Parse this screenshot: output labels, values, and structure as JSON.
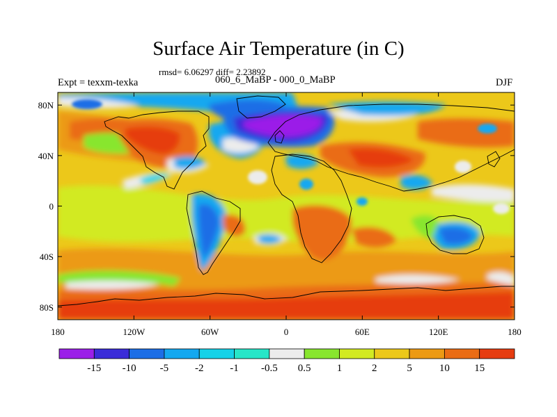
{
  "title": "Surface Air Temperature (in C)",
  "stats_line": "rmsd= 6.06297 diff= 2.23892",
  "difference_label": "060_6_MaBP - 000_0_MaBP",
  "experiment_label": "Expt = texxm-texka",
  "season": "DJF",
  "map": {
    "projection": "cylindrical-equidistant",
    "lon_range": [
      -180,
      180
    ],
    "lat_range": [
      -90,
      90
    ],
    "lon_ticks": [
      {
        "value": -180,
        "label": "180"
      },
      {
        "value": -120,
        "label": "120W"
      },
      {
        "value": -60,
        "label": "60W"
      },
      {
        "value": 0,
        "label": "0"
      },
      {
        "value": 60,
        "label": "60E"
      },
      {
        "value": 120,
        "label": "120E"
      },
      {
        "value": 180,
        "label": "180"
      }
    ],
    "lat_ticks": [
      {
        "value": 80,
        "label": "80N"
      },
      {
        "value": 40,
        "label": "40N"
      },
      {
        "value": 0,
        "label": "0"
      },
      {
        "value": -40,
        "label": "40S"
      },
      {
        "value": -80,
        "label": "80S"
      }
    ]
  },
  "colorbar": {
    "levels": [
      "-15",
      "-10",
      "-5",
      "-2",
      "-1",
      "-0.5",
      "0.5",
      "1",
      "2",
      "5",
      "10",
      "15"
    ],
    "colors": [
      "#9b1fe8",
      "#3a2cd8",
      "#1c6ee6",
      "#14a8f0",
      "#16d2e8",
      "#27e6c8",
      "#ececec",
      "#88e62e",
      "#d2ea22",
      "#ecc81a",
      "#ec9a14",
      "#ea6c14",
      "#e63c10"
    ]
  },
  "chart_data": {
    "type": "heatmap",
    "title": "Surface Air Temperature (in C)",
    "xlabel": "",
    "ylabel": "",
    "x_range": [
      -180,
      180
    ],
    "y_range": [
      -90,
      90
    ],
    "color_levels": [
      -15,
      -10,
      -5,
      -2,
      -1,
      -0.5,
      0.5,
      1,
      2,
      5,
      10,
      15
    ],
    "legend_placement": "bottom",
    "grid": false
  }
}
